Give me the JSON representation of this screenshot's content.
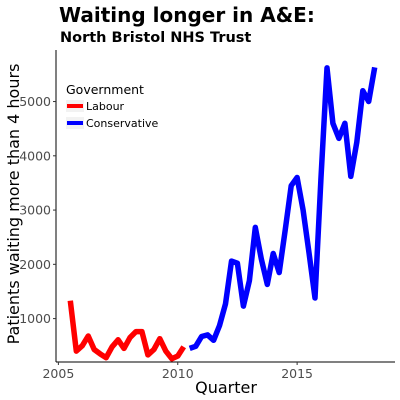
{
  "chart_data": {
    "type": "line",
    "title": "Waiting longer in A&E:",
    "subtitle": "North Bristol NHS Trust",
    "xlabel": "Quarter",
    "ylabel": "Patients waiting more than 4 hours",
    "xlim": [
      2004.9,
      2019.1
    ],
    "ylim": [
      200,
      5950
    ],
    "x_ticks": [
      2005,
      2010,
      2015
    ],
    "y_ticks": [
      1000,
      2000,
      3000,
      4000,
      5000
    ],
    "grid": false,
    "legend": {
      "title": "Government",
      "placement": "top-left"
    },
    "series": [
      {
        "name": "Labour",
        "color": "#ff0000",
        "points": [
          [
            2005.5,
            1330
          ],
          [
            2005.75,
            400
          ],
          [
            2006.0,
            500
          ],
          [
            2006.25,
            680
          ],
          [
            2006.5,
            430
          ],
          [
            2006.75,
            350
          ],
          [
            2007.0,
            280
          ],
          [
            2007.25,
            480
          ],
          [
            2007.5,
            610
          ],
          [
            2007.75,
            450
          ],
          [
            2008.0,
            650
          ],
          [
            2008.25,
            760
          ],
          [
            2008.5,
            760
          ],
          [
            2008.75,
            330
          ],
          [
            2009.0,
            430
          ],
          [
            2009.25,
            630
          ],
          [
            2009.5,
            400
          ],
          [
            2009.75,
            260
          ],
          [
            2010.0,
            310
          ],
          [
            2010.25,
            480
          ]
        ]
      },
      {
        "name": "Conservative",
        "color": "#0000ff",
        "points": [
          [
            2010.5,
            450
          ],
          [
            2010.75,
            490
          ],
          [
            2011.0,
            670
          ],
          [
            2011.25,
            700
          ],
          [
            2011.5,
            600
          ],
          [
            2011.75,
            870
          ],
          [
            2012.0,
            1270
          ],
          [
            2012.25,
            2060
          ],
          [
            2012.5,
            2020
          ],
          [
            2012.75,
            1230
          ],
          [
            2013.0,
            1700
          ],
          [
            2013.25,
            2680
          ],
          [
            2013.5,
            2100
          ],
          [
            2013.75,
            1630
          ],
          [
            2014.0,
            2200
          ],
          [
            2014.25,
            1850
          ],
          [
            2014.5,
            2630
          ],
          [
            2014.75,
            3450
          ],
          [
            2015.0,
            3600
          ],
          [
            2015.25,
            3000
          ],
          [
            2015.5,
            2200
          ],
          [
            2015.75,
            1380
          ],
          [
            2016.0,
            3600
          ],
          [
            2016.25,
            5620
          ],
          [
            2016.5,
            4600
          ],
          [
            2016.75,
            4320
          ],
          [
            2017.0,
            4600
          ],
          [
            2017.25,
            3620
          ],
          [
            2017.5,
            4250
          ],
          [
            2017.75,
            5200
          ],
          [
            2018.0,
            5000
          ],
          [
            2018.25,
            5630
          ]
        ]
      }
    ]
  }
}
